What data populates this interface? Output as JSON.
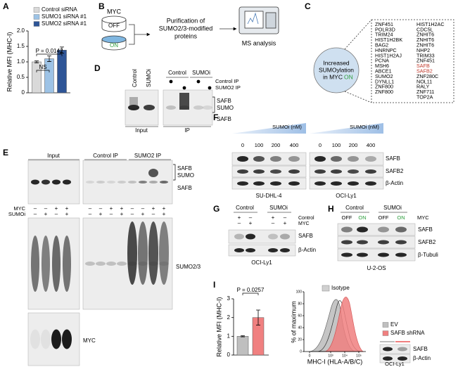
{
  "letters": [
    "A",
    "B",
    "C",
    "D",
    "E",
    "F",
    "G",
    "H",
    "I"
  ],
  "chart_data": [
    {
      "type": "bar",
      "ylabel": "Relative MFI (MHC-I)",
      "categories": [
        "Control siRNA",
        "SUMO1 siRNA #1",
        "SUMO2 siRNA #1"
      ],
      "values": [
        1.0,
        1.1,
        1.38
      ],
      "errors": [
        0.03,
        0.09,
        0.1
      ],
      "colors": [
        "#d9d9d9",
        "#9dc3e6",
        "#2e5597"
      ],
      "ylim": [
        0,
        2
      ],
      "yticks": [
        0,
        0.5,
        {
          "value": 1,
          "label": "1.0"
        },
        1.5,
        {
          "value": 2,
          "label": "2.0"
        }
      ],
      "annotations": [
        "NS",
        "P = 0.0142"
      ]
    },
    {
      "type": "bar",
      "ylabel": "Relative MFI (MHC-I)",
      "categories": [
        "EV",
        "SAFB shRNA"
      ],
      "values": [
        1.0,
        2.0
      ],
      "errors": [
        0.03,
        0.4
      ],
      "colors": [
        "#bfbfbf",
        "#f08080"
      ],
      "ylim": [
        0,
        3
      ],
      "yticks": [
        0,
        1,
        2,
        3
      ],
      "annotations": [
        "P = 0.0257"
      ]
    }
  ],
  "flow": {
    "ylabel": "% of maximum",
    "xlabel": "MHC-I (HLA-A/B/C)",
    "legend": "Isotype",
    "ylim": [
      0,
      100
    ],
    "yticks": [
      0,
      20,
      40,
      60,
      80,
      100
    ],
    "xticks": [
      0,
      {
        "value": 1000,
        "label": "10³"
      },
      {
        "value": 10000,
        "label": "10⁴"
      },
      {
        "value": 100000,
        "label": "10⁵"
      }
    ]
  },
  "b": {
    "myc": "MYC",
    "off": "OFF",
    "on": {
      "text": "ON",
      "color": "#2e9e3e"
    },
    "purification": [
      "Purification of",
      "SUMO2/3-modified",
      "proteins"
    ],
    "ms": "MS analysis"
  },
  "c": {
    "circle": [
      "Increased",
      "SUMOylation",
      "in MYC"
    ],
    "circle_on": {
      "text": "ON",
      "color": "#2e9e3e"
    },
    "col1": [
      "ZNF451",
      "POLR3D",
      "TRIM24",
      "HIST1H2BK",
      "BAG2",
      "HNRNPC",
      "HIST1H2AJ",
      "PCNA",
      "MSH6",
      "ABCE1",
      "SUMO2",
      "DYNLL1",
      "ZNF800",
      "ZNF800"
    ],
    "col2": [
      "HIST1H2AC",
      "CDC5L",
      "ZNHIT6",
      "ZNHIT6",
      "ZNHIT6",
      "NHP2",
      "TRIM33",
      "ZNF451",
      {
        "name": "SAFB",
        "color": "#c0392b"
      },
      {
        "name": "SAFB2",
        "color": "#c0392b"
      },
      "ZNF280C",
      "NOL11",
      "RALY",
      "ZNF711",
      "TOP2A"
    ]
  },
  "d": {
    "lanes_input": [
      "Control",
      "SUMOi"
    ],
    "lanes_ip": [
      "Control",
      "SUMOi"
    ],
    "rows": [
      "Control IP",
      "SUMO2 IP"
    ],
    "bands": [
      "SAFB",
      "SUMO",
      "SAFB"
    ],
    "input": "Input",
    "ip": "IP"
  },
  "e": {
    "groups": [
      "Input",
      "Control IP",
      "SUMO2 IP"
    ],
    "bands": [
      "SAFB",
      "SUMO",
      "SAFB"
    ],
    "rows": [
      {
        "label": "MYC",
        "signs": [
          "–",
          "–",
          "+",
          "+",
          "–",
          "–",
          "+",
          "+",
          "–",
          "–",
          "+",
          "+"
        ]
      },
      {
        "label": "SUMOi",
        "signs": [
          "–",
          "+",
          "–",
          "+",
          "–",
          "+",
          "–",
          "+",
          "–",
          "+",
          "–",
          "+"
        ]
      }
    ],
    "sumo": "SUMO2/3",
    "myc": "MYC"
  },
  "f": {
    "unit": "SUMOi (nM)",
    "doses": [
      0,
      100,
      200,
      400
    ],
    "bands": [
      "SAFB",
      "SAFB2",
      "β-Actin"
    ],
    "cells": [
      "SU-DHL-4",
      "OCI-Ly1"
    ]
  },
  "g": {
    "groups": [
      "Control",
      "SUMOi"
    ],
    "rows": [
      {
        "label": "Control",
        "signs": [
          "+",
          "–",
          "+",
          "–"
        ]
      },
      {
        "label": "MYC",
        "signs": [
          "–",
          "+",
          "–",
          "+"
        ]
      }
    ],
    "bands": [
      "SAFB",
      "β-Actin"
    ],
    "cell": "OCI-Ly1"
  },
  "h": {
    "groups": [
      "Control",
      "SUMOi"
    ],
    "states": [
      {
        "text": "OFF",
        "color": "#000000"
      },
      {
        "text": "ON",
        "color": "#2e9e3e"
      },
      {
        "text": "OFF",
        "color": "#000000"
      },
      {
        "text": "ON",
        "color": "#2e9e3e"
      }
    ],
    "row_label": "MYC",
    "bands": [
      "SAFB",
      "SAFB2",
      "β-Tubuli"
    ],
    "cell": "U-2-OS"
  },
  "i": {
    "bands": [
      "SAFB",
      "β-Actin"
    ],
    "cell": "OCI-Ly1"
  }
}
